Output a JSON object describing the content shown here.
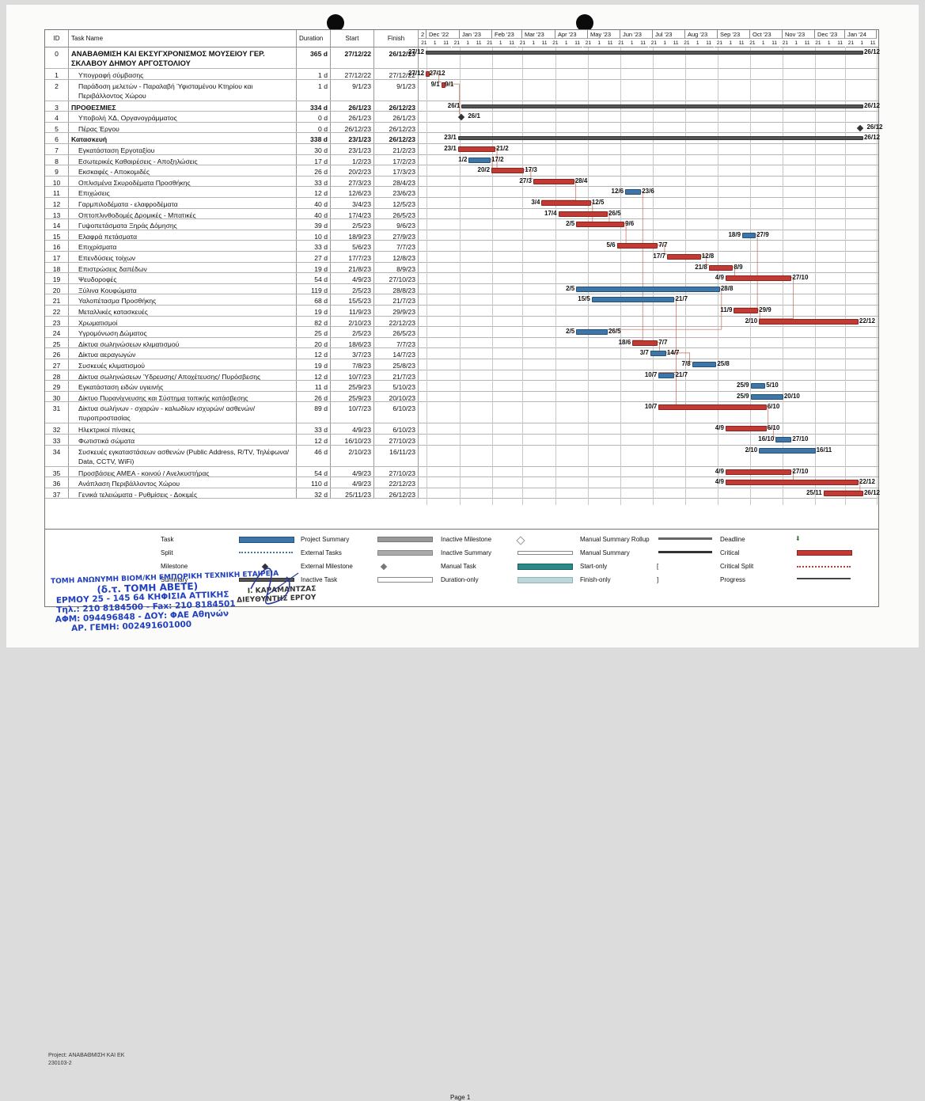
{
  "header": {
    "id": "ID",
    "task_name": "Task Name",
    "duration": "Duration",
    "start": "Start",
    "finish": "Finish"
  },
  "timescale": {
    "months": [
      "2",
      "Dec '22",
      "Jan '23",
      "Feb '23",
      "Mar '23",
      "Apr '23",
      "May '23",
      "Jun '23",
      "Jul '23",
      "Aug '23",
      "Sep '23",
      "Oct '23",
      "Nov '23",
      "Dec '23",
      "Jan '24"
    ],
    "days": [
      "21",
      "1",
      "11",
      "21",
      "1",
      "11",
      "21",
      "1",
      "11",
      "21",
      "1",
      "11",
      "21",
      "1",
      "11",
      "21",
      "1",
      "11",
      "21",
      "1",
      "11",
      "21",
      "1",
      "11",
      "21",
      "1",
      "11",
      "21",
      "1",
      "11",
      "21",
      "1",
      "11",
      "21",
      "1",
      "11",
      "21",
      "1",
      "11",
      "21",
      "1",
      "11"
    ]
  },
  "tasks": [
    {
      "id": "0",
      "name": "ΑΝΑΒΑΘΜΙΣΗ ΚΑΙ ΕΚΣΥΓΧΡΟΝΙΣΜΟΣ ΜΟΥΣΕΙΟΥ ΓΕΡ. ΣΚΛΑΒΟΥ ΔΗΜΟΥ ΑΡΓΟΣΤΟΛΙΟΥ",
      "duration": "365 d",
      "start": "27/12/22",
      "finish": "26/12/23",
      "type": "project",
      "bar_start": "27/12",
      "bar_end": "26/12"
    },
    {
      "id": "1",
      "name": "Υπογραφή σύμβασης",
      "duration": "1 d",
      "start": "27/12/22",
      "finish": "27/12/22",
      "type": "critical",
      "bar_start": "27/12",
      "bar_end": "27/12"
    },
    {
      "id": "2",
      "name": "Παράδοση μελετών - Παραλαβή Ύφισταμένου Κτηρίου και Περιβάλλοντος Χώρου",
      "duration": "1 d",
      "start": "9/1/23",
      "finish": "9/1/23",
      "type": "critical",
      "bar_start": "9/1",
      "bar_end": "9/1"
    },
    {
      "id": "3",
      "name": "ΠΡΟΘΕΣΜΙΕΣ",
      "duration": "334 d",
      "start": "26/1/23",
      "finish": "26/12/23",
      "type": "summary",
      "bar_start": "26/1",
      "bar_end": "26/12"
    },
    {
      "id": "4",
      "name": "Υποβολή ΧΔ, Οργανογράμματος",
      "duration": "0 d",
      "start": "26/1/23",
      "finish": "26/1/23",
      "type": "milestone",
      "bar_start": "",
      "bar_end": "26/1"
    },
    {
      "id": "5",
      "name": "Πέρας Έργου",
      "duration": "0 d",
      "start": "26/12/23",
      "finish": "26/12/23",
      "type": "milestone",
      "bar_start": "",
      "bar_end": "26/12"
    },
    {
      "id": "6",
      "name": "Κατασκευή",
      "duration": "338 d",
      "start": "23/1/23",
      "finish": "26/12/23",
      "type": "summary",
      "bar_start": "23/1",
      "bar_end": "26/12"
    },
    {
      "id": "7",
      "name": "Εγκατάσταση Εργοταξίου",
      "duration": "30 d",
      "start": "23/1/23",
      "finish": "21/2/23",
      "type": "critical",
      "bar_start": "23/1",
      "bar_end": "21/2"
    },
    {
      "id": "8",
      "name": "Εσωτερικές Καθαιρέσεις - Αποξηλώσεις",
      "duration": "17 d",
      "start": "1/2/23",
      "finish": "17/2/23",
      "type": "normal",
      "bar_start": "1/2",
      "bar_end": "17/2"
    },
    {
      "id": "9",
      "name": "Εκσκαφές - Αποκομιδές",
      "duration": "26 d",
      "start": "20/2/23",
      "finish": "17/3/23",
      "type": "critical",
      "bar_start": "20/2",
      "bar_end": "17/3"
    },
    {
      "id": "10",
      "name": "Οπλισμένα Σκυροδέματα Προσθήκης",
      "duration": "33 d",
      "start": "27/3/23",
      "finish": "28/4/23",
      "type": "critical",
      "bar_start": "27/3",
      "bar_end": "28/4"
    },
    {
      "id": "11",
      "name": "Επιχώσεις",
      "duration": "12 d",
      "start": "12/6/23",
      "finish": "23/6/23",
      "type": "normal",
      "bar_start": "12/6",
      "bar_end": "23/6"
    },
    {
      "id": "12",
      "name": "Γαρμπιλοδέματα - ελαφροδέματα",
      "duration": "40 d",
      "start": "3/4/23",
      "finish": "12/5/23",
      "type": "critical",
      "bar_start": "3/4",
      "bar_end": "12/5"
    },
    {
      "id": "13",
      "name": "Οπτοπλινθοδομές Δρομικές - Μπατικές",
      "duration": "40 d",
      "start": "17/4/23",
      "finish": "26/5/23",
      "type": "critical",
      "bar_start": "17/4",
      "bar_end": "26/5"
    },
    {
      "id": "14",
      "name": "Γυψοπετάσματα Ξηράς Δόμησης",
      "duration": "39 d",
      "start": "2/5/23",
      "finish": "9/6/23",
      "type": "critical",
      "bar_start": "2/5",
      "bar_end": "9/6"
    },
    {
      "id": "15",
      "name": "Ελαφρά πετάσματα",
      "duration": "10 d",
      "start": "18/9/23",
      "finish": "27/9/23",
      "type": "normal",
      "bar_start": "18/9",
      "bar_end": "27/9"
    },
    {
      "id": "16",
      "name": "Επιχρίσματα",
      "duration": "33 d",
      "start": "5/6/23",
      "finish": "7/7/23",
      "type": "critical",
      "bar_start": "5/6",
      "bar_end": "7/7"
    },
    {
      "id": "17",
      "name": "Επενδύσεις τοίχων",
      "duration": "27 d",
      "start": "17/7/23",
      "finish": "12/8/23",
      "type": "critical",
      "bar_start": "17/7",
      "bar_end": "12/8"
    },
    {
      "id": "18",
      "name": "Επιστρώσεις δαπέδων",
      "duration": "19 d",
      "start": "21/8/23",
      "finish": "8/9/23",
      "type": "critical",
      "bar_start": "21/8",
      "bar_end": "8/9"
    },
    {
      "id": "19",
      "name": "Ψευδοροφές",
      "duration": "54 d",
      "start": "4/9/23",
      "finish": "27/10/23",
      "type": "critical",
      "bar_start": "4/9",
      "bar_end": "27/10"
    },
    {
      "id": "20",
      "name": "Ξύλινα Κουφώματα",
      "duration": "119 d",
      "start": "2/5/23",
      "finish": "28/8/23",
      "type": "normal",
      "bar_start": "2/5",
      "bar_end": "28/8"
    },
    {
      "id": "21",
      "name": "Υαλοπέτασμα Προσθήκης",
      "duration": "68 d",
      "start": "15/5/23",
      "finish": "21/7/23",
      "type": "normal",
      "bar_start": "15/5",
      "bar_end": "21/7"
    },
    {
      "id": "22",
      "name": "Μεταλλικές κατασκευές",
      "duration": "19 d",
      "start": "11/9/23",
      "finish": "29/9/23",
      "type": "critical",
      "bar_start": "11/9",
      "bar_end": "29/9"
    },
    {
      "id": "23",
      "name": "Χρωματισμοί",
      "duration": "82 d",
      "start": "2/10/23",
      "finish": "22/12/23",
      "type": "critical",
      "bar_start": "2/10",
      "bar_end": "22/12"
    },
    {
      "id": "24",
      "name": "Υγρομόνωση Δώματος",
      "duration": "25 d",
      "start": "2/5/23",
      "finish": "26/5/23",
      "type": "normal",
      "bar_start": "2/5",
      "bar_end": "26/5"
    },
    {
      "id": "25",
      "name": "Δίκτυα σωληνώσεων κλιματισμού",
      "duration": "20 d",
      "start": "18/6/23",
      "finish": "7/7/23",
      "type": "critical",
      "bar_start": "18/6",
      "bar_end": "7/7"
    },
    {
      "id": "26",
      "name": "Δίκτυα αεραγωγών",
      "duration": "12 d",
      "start": "3/7/23",
      "finish": "14/7/23",
      "type": "normal",
      "bar_start": "3/7",
      "bar_end": "14/7"
    },
    {
      "id": "27",
      "name": "Συσκευές κλιματισμού",
      "duration": "19 d",
      "start": "7/8/23",
      "finish": "25/8/23",
      "type": "normal",
      "bar_start": "7/8",
      "bar_end": "25/8"
    },
    {
      "id": "28",
      "name": "Δίκτυα σωληνώσεων Ύδρευσης/ Αποχέτευσης/ Πυρόσβεσης",
      "duration": "12 d",
      "start": "10/7/23",
      "finish": "21/7/23",
      "type": "normal",
      "bar_start": "10/7",
      "bar_end": "21/7"
    },
    {
      "id": "29",
      "name": "Εγκατάσταση ειδών υγιεινής",
      "duration": "11 d",
      "start": "25/9/23",
      "finish": "5/10/23",
      "type": "normal",
      "bar_start": "25/9",
      "bar_end": "5/10"
    },
    {
      "id": "30",
      "name": "Δίκτυο Πυρανίχνευσης και Σύστημα τοπικής κατάσβεσης",
      "duration": "26 d",
      "start": "25/9/23",
      "finish": "20/10/23",
      "type": "normal",
      "bar_start": "25/9",
      "bar_end": "20/10"
    },
    {
      "id": "31",
      "name": "Δίκτυα σωλήνων - σχαρών - καλωδίων ισχυρών/ ασθενών/ πυροπροστασίας",
      "duration": "89 d",
      "start": "10/7/23",
      "finish": "6/10/23",
      "type": "critical",
      "bar_start": "10/7",
      "bar_end": "6/10"
    },
    {
      "id": "32",
      "name": "Ηλεκτρικοί πίνακες",
      "duration": "33 d",
      "start": "4/9/23",
      "finish": "6/10/23",
      "type": "critical",
      "bar_start": "4/9",
      "bar_end": "6/10"
    },
    {
      "id": "33",
      "name": "Φωτιστικά σώματα",
      "duration": "12 d",
      "start": "16/10/23",
      "finish": "27/10/23",
      "type": "normal",
      "bar_start": "16/10",
      "bar_end": "27/10"
    },
    {
      "id": "34",
      "name": "Συσκευές εγκαταστάσεων ασθενών (Public Address, R/TV, Τηλέφωνα/ Data, CCTV, WiFi)",
      "duration": "46 d",
      "start": "2/10/23",
      "finish": "16/11/23",
      "type": "normal",
      "bar_start": "2/10",
      "bar_end": "16/11"
    },
    {
      "id": "35",
      "name": "Προσβάσεις ΑΜΕΑ - κοινού / Ανελκυστήρας",
      "duration": "54 d",
      "start": "4/9/23",
      "finish": "27/10/23",
      "type": "critical",
      "bar_start": "4/9",
      "bar_end": "27/10"
    },
    {
      "id": "36",
      "name": "Ανάπλαση Περιβάλλοντος Χώρου",
      "duration": "110 d",
      "start": "4/9/23",
      "finish": "22/12/23",
      "type": "critical",
      "bar_start": "4/9",
      "bar_end": "22/12"
    },
    {
      "id": "37",
      "name": "Γενικά τελειώματα - Ρυθμίσεις - Δοκιμές",
      "duration": "32 d",
      "start": "25/11/23",
      "finish": "26/12/23",
      "type": "critical",
      "bar_start": "25/11",
      "bar_end": "26/12"
    }
  ],
  "legend": {
    "task": "Task",
    "split": "Split",
    "milestone": "Milestone",
    "summary": "Summary",
    "project_summary": "Project Summary",
    "external_tasks": "External Tasks",
    "external_milestone": "External Milestone",
    "inactive_task": "Inactive Task",
    "inactive_milestone": "Inactive Milestone",
    "inactive_summary": "Inactive Summary",
    "manual_task": "Manual Task",
    "duration_only": "Duration-only",
    "manual_summary_rollup": "Manual Summary Rollup",
    "manual_summary": "Manual Summary",
    "start_only": "Start-only",
    "finish_only": "Finish-only",
    "deadline": "Deadline",
    "critical": "Critical",
    "critical_split": "Critical Split",
    "progress": "Progress"
  },
  "project_info": {
    "project_label": "Project: ΑΝΑΒΑΘΜΙΣΗ ΚΑΙ ΕΚ",
    "date": "230103-2"
  },
  "page_label": "Page 1",
  "stamp": {
    "line1": "ΤΟΜΗ ΑΝΩΝΥΜΗ ΒΙΟΜ/ΚΗ ΕΜΠΟΡΙΚΗ ΤΕΧΝΙΚΗ ΕΤΑΙΡΕΙΑ",
    "line2": "(δ.τ. ΤΟΜΗ ΑΒΕΤΕ)",
    "line3": "ΕΡΜΟΥ 25 - 145 64 ΚΗΦΙΣΙΑ ΑΤΤΙΚΗΣ",
    "line4": "Τηλ.: 210 8184500 - Fax: 210 8184501",
    "line5": "ΑΦΜ: 094496848 - ΔΟΥ: ΦΑΕ Αθηνών",
    "line6": "ΑΡ. ΓΕΜΗ: 002491601000"
  },
  "stamp2": {
    "line1": "Ι. ΚΑΡΑΜΑΝΤΖΑΣ",
    "line2": "ΔΙΕΥΘΥΝΤΗΣ ΕΡΓΟΥ"
  },
  "colors": {
    "critical": "#c23a34",
    "normal": "#3f76a8",
    "summary": "#555555"
  }
}
